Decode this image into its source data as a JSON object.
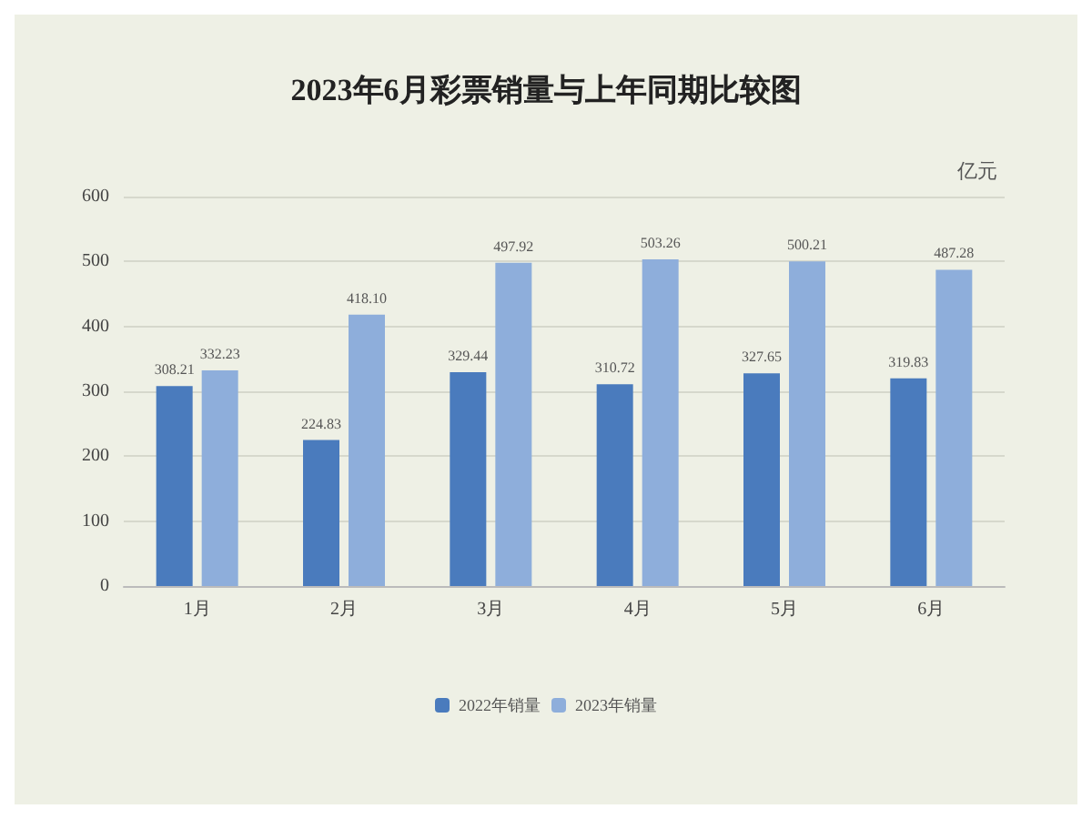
{
  "chart_data": {
    "type": "bar",
    "title": "2023年6月彩票销量与上年同期比较图",
    "ylabel": "亿元",
    "categories": [
      "1月",
      "2月",
      "3月",
      "4月",
      "5月",
      "6月"
    ],
    "series": [
      {
        "name": "2022年销量",
        "color": "#4a7bbd",
        "values": [
          308.21,
          224.83,
          329.44,
          310.72,
          327.65,
          319.83
        ],
        "value_labels": [
          "308.21",
          "224.83",
          "329.44",
          "310.72",
          "327.65",
          "319.83"
        ]
      },
      {
        "name": "2023年销量",
        "color": "#8eaedb",
        "values": [
          332.23,
          418.1,
          497.92,
          503.26,
          500.21,
          487.28
        ],
        "value_labels": [
          "332.23",
          "418.10",
          "497.92",
          "503.26",
          "500.21",
          "487.28"
        ]
      }
    ],
    "ylim": [
      0,
      600
    ],
    "yticks": [
      0,
      100,
      200,
      300,
      400,
      500,
      600
    ],
    "grid": "y",
    "legend": "bottom"
  }
}
